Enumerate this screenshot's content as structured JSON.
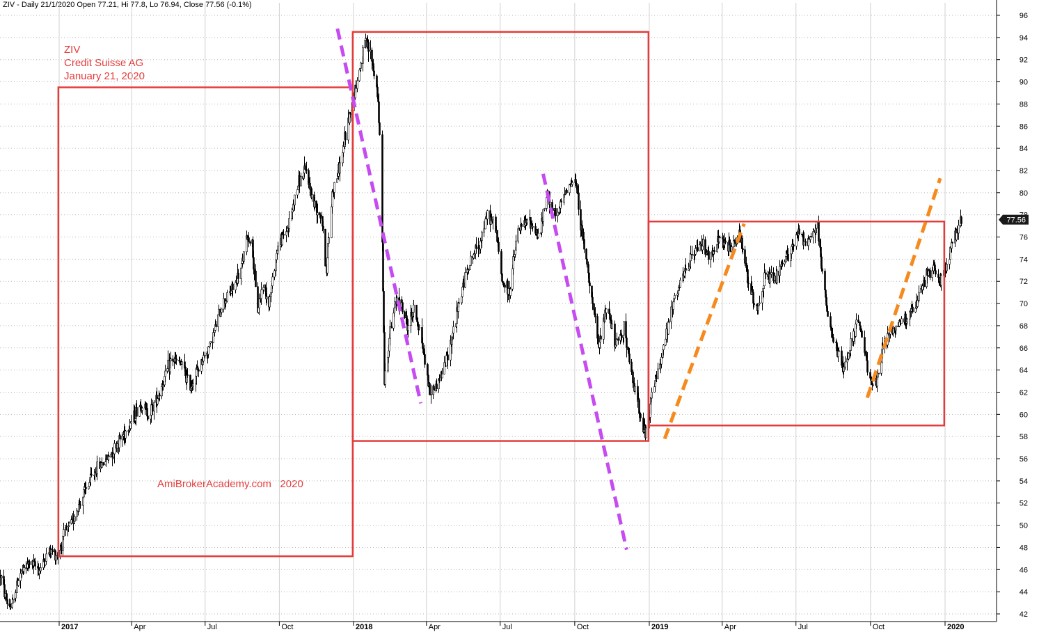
{
  "header": {
    "text": "ZIV - Daily 21/1/2020 Open 77.21, Hi 77.8, Lo 76.94, Close 77.56 (-0.1%)"
  },
  "annotations": {
    "title_lines": [
      "ZIV",
      "Credit Suisse AG",
      "January 21, 2020"
    ],
    "watermark": "AmiBrokerAcademy.com   2020"
  },
  "colors": {
    "candles": "#000000",
    "boxes": "#e53b3b",
    "down_trend": "#c64bf0",
    "up_trend": "#f58a1f",
    "grid": "#b5b5b5",
    "price_badge_bg": "#1a1a1a",
    "price_badge_text": "#ffffff"
  },
  "chart_data": {
    "type": "candlestick",
    "symbol": "ZIV",
    "period": "Daily",
    "y_axis": {
      "range": [
        41,
        97
      ],
      "ticks": [
        42,
        44,
        46,
        48,
        50,
        52,
        54,
        56,
        58,
        60,
        62,
        64,
        66,
        68,
        70,
        72,
        74,
        76,
        78,
        80,
        82,
        84,
        86,
        88,
        90,
        92,
        94,
        96
      ],
      "position": "right",
      "grid": "dotted"
    },
    "x_axis": {
      "range": [
        "2016-10-20",
        "2020-02-05"
      ],
      "ticks": [
        {
          "label": "2017",
          "date": "2017-01-01",
          "bold": true
        },
        {
          "label": "Apr",
          "date": "2017-04-01",
          "bold": false
        },
        {
          "label": "Jul",
          "date": "2017-07-01",
          "bold": false
        },
        {
          "label": "Oct",
          "date": "2017-10-01",
          "bold": false
        },
        {
          "label": "2018",
          "date": "2018-01-01",
          "bold": true
        },
        {
          "label": "Apr",
          "date": "2018-04-01",
          "bold": false
        },
        {
          "label": "Jul",
          "date": "2018-07-01",
          "bold": false
        },
        {
          "label": "Oct",
          "date": "2018-10-01",
          "bold": false
        },
        {
          "label": "2019",
          "date": "2019-01-01",
          "bold": true
        },
        {
          "label": "Apr",
          "date": "2019-04-01",
          "bold": false
        },
        {
          "label": "Jul",
          "date": "2019-07-01",
          "bold": false
        },
        {
          "label": "Oct",
          "date": "2019-10-01",
          "bold": false
        },
        {
          "label": "2020",
          "date": "2020-01-01",
          "bold": true
        }
      ]
    },
    "last_price": 77.56,
    "price_path": [
      [
        "2016-10-20",
        45.5
      ],
      [
        "2016-10-28",
        43.0
      ],
      [
        "2016-11-03",
        42.6
      ],
      [
        "2016-11-12",
        45.5
      ],
      [
        "2016-11-25",
        46.6
      ],
      [
        "2016-12-08",
        46.0
      ],
      [
        "2016-12-20",
        47.7
      ],
      [
        "2016-12-31",
        47.3
      ],
      [
        "2017-01-06",
        49.0
      ],
      [
        "2017-01-15",
        50.0
      ],
      [
        "2017-02-01",
        53.0
      ],
      [
        "2017-02-15",
        55.0
      ],
      [
        "2017-03-01",
        56.0
      ],
      [
        "2017-03-15",
        57.5
      ],
      [
        "2017-03-28",
        59.0
      ],
      [
        "2017-04-12",
        61.0
      ],
      [
        "2017-04-22",
        60.0
      ],
      [
        "2017-05-05",
        62.0
      ],
      [
        "2017-05-20",
        65.0
      ],
      [
        "2017-06-01",
        64.5
      ],
      [
        "2017-06-12",
        62.5
      ],
      [
        "2017-06-25",
        64.5
      ],
      [
        "2017-07-08",
        66.5
      ],
      [
        "2017-07-22",
        70.0
      ],
      [
        "2017-08-05",
        71.5
      ],
      [
        "2017-08-14",
        73.0
      ],
      [
        "2017-08-22",
        76.0
      ],
      [
        "2017-08-28",
        75.5
      ],
      [
        "2017-09-03",
        69.0
      ],
      [
        "2017-09-10",
        72.0
      ],
      [
        "2017-09-18",
        70.0
      ],
      [
        "2017-09-28",
        75.0
      ],
      [
        "2017-10-12",
        77.0
      ],
      [
        "2017-10-25",
        81.0
      ],
      [
        "2017-11-03",
        82.0
      ],
      [
        "2017-11-12",
        79.0
      ],
      [
        "2017-11-22",
        78.0
      ],
      [
        "2017-11-28",
        73.0
      ],
      [
        "2017-12-05",
        80.0
      ],
      [
        "2017-12-15",
        82.5
      ],
      [
        "2017-12-24",
        86.0
      ],
      [
        "2017-12-31",
        88.5
      ],
      [
        "2018-01-08",
        91.0
      ],
      [
        "2018-01-15",
        93.5
      ],
      [
        "2018-01-22",
        92.5
      ],
      [
        "2018-01-30",
        89.0
      ],
      [
        "2018-02-02",
        85.0
      ],
      [
        "2018-02-05",
        76.0
      ],
      [
        "2018-02-08",
        63.0
      ],
      [
        "2018-02-14",
        67.0
      ],
      [
        "2018-02-24",
        71.0
      ],
      [
        "2018-03-08",
        68.0
      ],
      [
        "2018-03-16",
        69.5
      ],
      [
        "2018-03-24",
        67.5
      ],
      [
        "2018-04-05",
        62.0
      ],
      [
        "2018-04-12",
        62.5
      ],
      [
        "2018-04-22",
        64.0
      ],
      [
        "2018-05-05",
        68.0
      ],
      [
        "2018-05-20",
        73.0
      ],
      [
        "2018-06-05",
        75.5
      ],
      [
        "2018-06-15",
        78.0
      ],
      [
        "2018-06-25",
        77.0
      ],
      [
        "2018-07-03",
        72.0
      ],
      [
        "2018-07-12",
        71.0
      ],
      [
        "2018-07-22",
        76.5
      ],
      [
        "2018-08-05",
        77.5
      ],
      [
        "2018-08-18",
        76.0
      ],
      [
        "2018-08-28",
        80.0
      ],
      [
        "2018-09-08",
        77.5
      ],
      [
        "2018-09-20",
        80.5
      ],
      [
        "2018-10-02",
        81.0
      ],
      [
        "2018-10-10",
        76.0
      ],
      [
        "2018-10-20",
        71.5
      ],
      [
        "2018-10-30",
        66.0
      ],
      [
        "2018-11-10",
        70.0
      ],
      [
        "2018-11-20",
        66.0
      ],
      [
        "2018-12-01",
        68.0
      ],
      [
        "2018-12-08",
        64.0
      ],
      [
        "2018-12-18",
        61.0
      ],
      [
        "2018-12-27",
        58.0
      ],
      [
        "2019-01-05",
        62.0
      ],
      [
        "2019-01-18",
        66.0
      ],
      [
        "2019-01-30",
        70.0
      ],
      [
        "2019-02-12",
        72.5
      ],
      [
        "2019-02-24",
        74.5
      ],
      [
        "2019-03-08",
        75.5
      ],
      [
        "2019-03-18",
        74.0
      ],
      [
        "2019-03-28",
        76.0
      ],
      [
        "2019-04-08",
        75.0
      ],
      [
        "2019-04-22",
        76.0
      ],
      [
        "2019-05-06",
        71.0
      ],
      [
        "2019-05-14",
        69.5
      ],
      [
        "2019-05-24",
        72.5
      ],
      [
        "2019-06-03",
        72.0
      ],
      [
        "2019-06-15",
        73.5
      ],
      [
        "2019-06-25",
        75.0
      ],
      [
        "2019-07-05",
        76.5
      ],
      [
        "2019-07-15",
        75.5
      ],
      [
        "2019-07-26",
        77.0
      ],
      [
        "2019-08-03",
        72.0
      ],
      [
        "2019-08-10",
        68.0
      ],
      [
        "2019-08-20",
        66.0
      ],
      [
        "2019-08-28",
        64.0
      ],
      [
        "2019-09-05",
        66.0
      ],
      [
        "2019-09-15",
        68.5
      ],
      [
        "2019-09-25",
        65.0
      ],
      [
        "2019-10-02",
        63.0
      ],
      [
        "2019-10-08",
        62.5
      ],
      [
        "2019-10-16",
        66.0
      ],
      [
        "2019-10-26",
        67.5
      ],
      [
        "2019-11-10",
        68.5
      ],
      [
        "2019-11-25",
        69.5
      ],
      [
        "2019-12-08",
        72.5
      ],
      [
        "2019-12-18",
        73.0
      ],
      [
        "2019-12-26",
        72.0
      ],
      [
        "2020-01-02",
        73.5
      ],
      [
        "2020-01-10",
        75.5
      ],
      [
        "2020-01-21",
        77.6
      ]
    ],
    "range_boxes": [
      {
        "start": "2016-12-31",
        "end": "2017-12-31",
        "low": 47.2,
        "high": 89.5
      },
      {
        "start": "2017-12-31",
        "end": "2018-12-31",
        "low": 57.6,
        "high": 94.5
      },
      {
        "start": "2018-12-31",
        "end": "2019-12-31",
        "low": 59.0,
        "high": 77.4
      }
    ],
    "trend_lines": [
      {
        "kind": "down",
        "from": [
          "2017-12-12",
          94.8
        ],
        "to": [
          "2018-03-25",
          61.0
        ]
      },
      {
        "kind": "down",
        "from": [
          "2018-08-23",
          81.7
        ],
        "to": [
          "2018-12-04",
          47.8
        ]
      },
      {
        "kind": "up",
        "from": [
          "2019-01-20",
          57.8
        ],
        "to": [
          "2019-04-28",
          77.2
        ]
      },
      {
        "kind": "up",
        "from": [
          "2019-09-27",
          61.5
        ],
        "to": [
          "2019-12-26",
          81.3
        ]
      }
    ]
  }
}
